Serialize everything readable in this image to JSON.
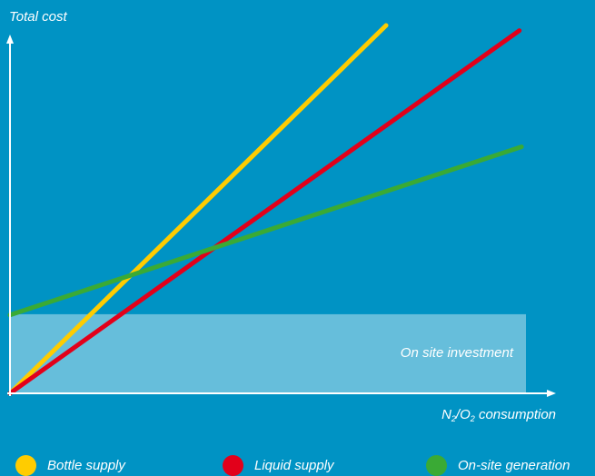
{
  "chart_data": {
    "type": "line",
    "ylabel": "Total cost",
    "xlabel_parts": [
      "N",
      "2",
      "/O",
      "2",
      " consumption"
    ],
    "xlim": [
      0,
      100
    ],
    "ylim": [
      0,
      100
    ],
    "region": {
      "label": "On site investment",
      "y_range": [
        0,
        21.5
      ],
      "color": "#ffffff"
    },
    "series": [
      {
        "name": "Bottle supply",
        "color": "#ffcc00",
        "x": [
          0,
          69.7
        ],
        "y": [
          0,
          100
        ]
      },
      {
        "name": "Liquid supply",
        "color": "#e2001a",
        "x": [
          0,
          94.4
        ],
        "y": [
          0,
          98.6
        ]
      },
      {
        "name": "On-site generation",
        "color": "#3aaa35",
        "x": [
          0,
          94.8
        ],
        "y": [
          21.3,
          67
        ]
      }
    ],
    "legend_position": "bottom"
  }
}
